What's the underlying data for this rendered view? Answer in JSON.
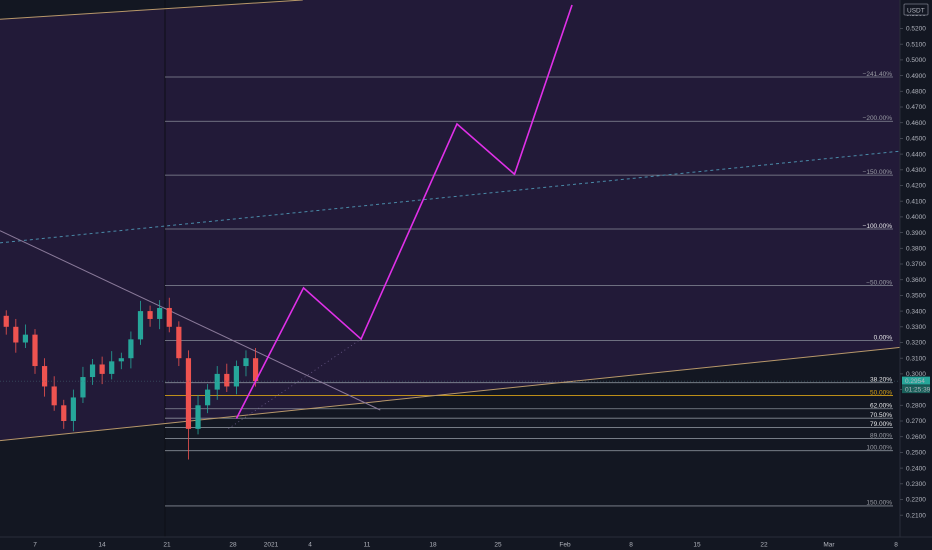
{
  "chart_data": {
    "type": "line",
    "instrument": {
      "quote_currency": "USDT"
    },
    "colors": {
      "background": "#131722",
      "channel_fill": "#221a38",
      "projection": "#e030e8",
      "up_candle": "#26a69a",
      "down_candle": "#ef5350",
      "channel_line": "#b8986a",
      "mid_line": "#4a8aa8",
      "diagonal": "#8a7a9a",
      "fib_line": "#9aa0aa",
      "fib_50": "#d4a017",
      "price_badge_bg": "#26a69a"
    },
    "price_axis": {
      "top_label": "0.5300",
      "ticks": [
        "0.5200",
        "0.5100",
        "0.5000",
        "0.4900",
        "0.4800",
        "0.4700",
        "0.4600",
        "0.4500",
        "0.4400",
        "0.4300",
        "0.4200",
        "0.4100",
        "0.4000",
        "0.3900",
        "0.3800",
        "0.3700",
        "0.3600",
        "0.3500",
        "0.3400",
        "0.3300",
        "0.3200",
        "0.3100",
        "0.3000",
        "0.2900",
        "0.2800",
        "0.2700",
        "0.2600",
        "0.2500",
        "0.2400",
        "0.2300",
        "0.2200",
        "0.2100"
      ],
      "current_price": "0.2954",
      "countdown": "01:25:39"
    },
    "time_axis": {
      "ticks": [
        "7",
        "14",
        "21",
        "28",
        "2021",
        "4",
        "11",
        "18",
        "25",
        "Feb",
        "8",
        "15",
        "22",
        "Mar",
        "8"
      ]
    },
    "fib_levels": [
      {
        "label": "241.40%",
        "price": 0.4891
      },
      {
        "label": "200.00%",
        "price": 0.4609
      },
      {
        "label": "150.00%",
        "price": 0.4266
      },
      {
        "label": "100.00%",
        "price": 0.3923
      },
      {
        "label": "50.00%",
        "price": 0.3563
      },
      {
        "label": "0.00%",
        "price": 0.3212
      },
      {
        "label": "38.20%",
        "price": 0.2944
      },
      {
        "label": "50.00%",
        "price": 0.2862
      },
      {
        "label": "62.00%",
        "price": 0.2778
      },
      {
        "label": "70.50%",
        "price": 0.2718
      },
      {
        "label": "79.00%",
        "price": 0.2659
      },
      {
        "label": "89.00%",
        "price": 0.2588
      },
      {
        "label": "100.00%",
        "price": 0.2511
      },
      {
        "label": "150.00%",
        "price": 0.2159
      }
    ],
    "projection_path": [
      {
        "date": "2020-12-28",
        "price": 0.2715
      },
      {
        "date": "2021-01-04",
        "price": 0.3548
      },
      {
        "date": "2021-01-10",
        "price": 0.3222
      },
      {
        "date": "2021-01-20",
        "price": 0.4592
      },
      {
        "date": "2021-01-26",
        "price": 0.4272
      },
      {
        "date": "2021-02-01",
        "price": 0.535
      }
    ],
    "channel": {
      "upper": [
        {
          "date": "2020-12-01",
          "price": 0.525
        },
        {
          "date": "2021-01-19",
          "price": 0.544
        }
      ],
      "lower": [
        {
          "date": "2020-12-01",
          "price": 0.256
        },
        {
          "date": "2021-03-09",
          "price": 0.318
        }
      ],
      "mid": [
        {
          "date": "2020-12-01",
          "price": 0.382
        },
        {
          "date": "2021-03-09",
          "price": 0.443
        }
      ]
    },
    "descending_trendline": [
      {
        "date": "2020-12-01",
        "price": 0.398
      },
      {
        "date": "2021-01-12",
        "price": 0.277
      }
    ],
    "close_series": [
      {
        "date": "2020-12-01",
        "price": 0.356
      },
      {
        "date": "2020-12-02",
        "price": 0.345
      },
      {
        "date": "2020-12-03",
        "price": 0.337
      },
      {
        "date": "2020-12-04",
        "price": 0.33
      },
      {
        "date": "2020-12-05",
        "price": 0.32
      },
      {
        "date": "2020-12-06",
        "price": 0.325
      },
      {
        "date": "2020-12-07",
        "price": 0.305
      },
      {
        "date": "2020-12-08",
        "price": 0.292
      },
      {
        "date": "2020-12-09",
        "price": 0.28
      },
      {
        "date": "2020-12-10",
        "price": 0.27
      },
      {
        "date": "2020-12-11",
        "price": 0.285
      },
      {
        "date": "2020-12-12",
        "price": 0.298
      },
      {
        "date": "2020-12-13",
        "price": 0.306
      },
      {
        "date": "2020-12-14",
        "price": 0.3
      },
      {
        "date": "2020-12-15",
        "price": 0.308
      },
      {
        "date": "2020-12-16",
        "price": 0.31
      },
      {
        "date": "2020-12-17",
        "price": 0.322
      },
      {
        "date": "2020-12-18",
        "price": 0.34
      },
      {
        "date": "2020-12-19",
        "price": 0.335
      },
      {
        "date": "2020-12-20",
        "price": 0.342
      },
      {
        "date": "2020-12-21",
        "price": 0.33
      },
      {
        "date": "2020-12-22",
        "price": 0.31
      },
      {
        "date": "2020-12-23",
        "price": 0.265
      },
      {
        "date": "2020-12-24",
        "price": 0.28
      },
      {
        "date": "2020-12-25",
        "price": 0.29
      },
      {
        "date": "2020-12-26",
        "price": 0.3
      },
      {
        "date": "2020-12-27",
        "price": 0.292
      },
      {
        "date": "2020-12-28",
        "price": 0.305
      },
      {
        "date": "2020-12-29",
        "price": 0.31
      },
      {
        "date": "2020-12-30",
        "price": 0.2954
      }
    ],
    "grid": false,
    "legend": "none"
  }
}
